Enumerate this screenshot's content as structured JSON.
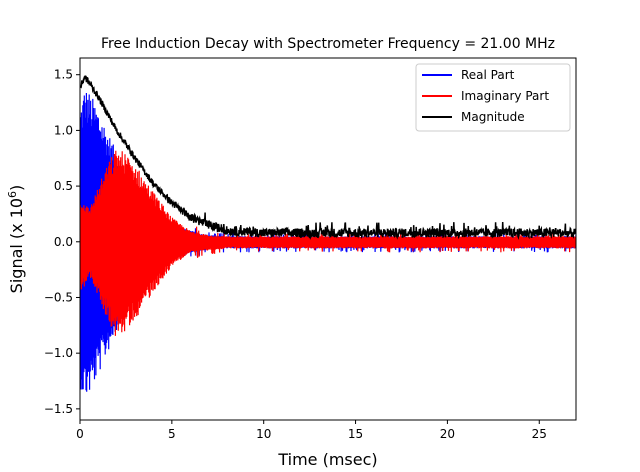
{
  "chart_data": {
    "type": "line",
    "title": "Free Induction Decay with Spectrometer Frequency = 21.00 MHz",
    "xlabel": "Time (msec)",
    "ylabel_main": "Signal (x 10",
    "ylabel_exp": "6",
    "ylabel_close": ")",
    "xlim": [
      0,
      27
    ],
    "ylim": [
      -1.6,
      1.65
    ],
    "xticks": [
      0,
      5,
      10,
      15,
      20,
      25
    ],
    "xtick_labels": [
      "0",
      "5",
      "10",
      "15",
      "20",
      "25"
    ],
    "yticks": [
      -1.5,
      -1.0,
      -0.5,
      0.0,
      0.5,
      1.0,
      1.5
    ],
    "ytick_labels": [
      "−1.5",
      "−1.0",
      "−0.5",
      "0.0",
      "0.5",
      "1.0",
      "1.5"
    ],
    "legend_position": "top-right",
    "grid": false,
    "series": [
      {
        "name": "Real Part",
        "color": "#0000ff",
        "envelope": {
          "x": [
            0,
            0.25,
            0.5,
            1,
            1.5,
            2,
            3,
            4,
            5,
            6,
            7,
            8,
            10,
            27
          ],
          "upper": [
            1.2,
            1.4,
            1.35,
            1.2,
            1.0,
            0.8,
            0.5,
            0.3,
            0.18,
            0.1,
            0.06,
            0.05,
            0.05,
            0.05
          ],
          "lower": [
            -1.3,
            -1.42,
            -1.38,
            -1.2,
            -1.0,
            -0.8,
            -0.5,
            -0.3,
            -0.18,
            -0.1,
            -0.07,
            -0.06,
            -0.06,
            -0.06
          ]
        }
      },
      {
        "name": "Imaginary Part",
        "color": "#ff0000",
        "envelope": {
          "x": [
            0,
            0.5,
            1,
            1.5,
            2,
            2.5,
            3,
            4,
            5,
            6,
            7,
            8,
            10,
            27
          ],
          "upper": [
            0.4,
            0.3,
            0.5,
            0.7,
            0.85,
            0.8,
            0.7,
            0.45,
            0.22,
            0.1,
            0.06,
            0.05,
            0.05,
            0.05
          ],
          "lower": [
            -0.5,
            -0.3,
            -0.5,
            -0.7,
            -0.88,
            -0.8,
            -0.7,
            -0.45,
            -0.22,
            -0.1,
            -0.08,
            -0.06,
            -0.06,
            -0.06
          ]
        }
      },
      {
        "name": "Magnitude",
        "color": "#000000",
        "curve": {
          "x": [
            0,
            0.25,
            0.5,
            1,
            1.5,
            2,
            3,
            4,
            5,
            6,
            7,
            8,
            10,
            27
          ],
          "y": [
            1.38,
            1.48,
            1.43,
            1.3,
            1.15,
            1.0,
            0.75,
            0.52,
            0.35,
            0.22,
            0.15,
            0.1,
            0.08,
            0.08
          ]
        }
      }
    ]
  }
}
